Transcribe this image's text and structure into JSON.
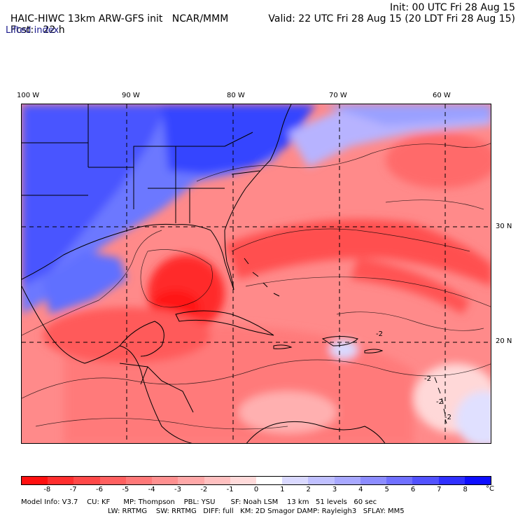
{
  "header": {
    "model": "HAIC-HIWC 13km ARW-GFS init",
    "org": "NCAR/MMM",
    "init": "Init: 00 UTC Fri 28 Aug 15",
    "fcst_label": "Fcst:",
    "fcst_value": "22 h",
    "valid": "Valid: 22 UTC Fri 28 Aug 15 (20 LDT Fri 28 Aug 15)",
    "field": "Lifted index"
  },
  "map": {
    "lon_labels": [
      "100 W",
      "90 W",
      "80 W",
      "70 W",
      "60 W"
    ],
    "lat_labels": [
      "30 N",
      "20 N"
    ],
    "contour_labels": [
      "-2",
      "-2",
      "-2",
      "-2"
    ]
  },
  "colorbar": {
    "ticks": [
      "-8",
      "-7",
      "-6",
      "-5",
      "-4",
      "-3",
      "-2",
      "-1",
      "0",
      "1",
      "2",
      "3",
      "4",
      "5",
      "6",
      "7",
      "8"
    ],
    "unit": "°C",
    "colors": [
      "#ff1010",
      "#ff2e2e",
      "#ff4848",
      "#ff6060",
      "#ff7878",
      "#ff9090",
      "#ffa8a8",
      "#ffc0c0",
      "#ffdada",
      "#ffffff",
      "#dad9ff",
      "#c0c0ff",
      "#a8a8ff",
      "#8c8cff",
      "#7070ff",
      "#5252ff",
      "#3030ff",
      "#0e0eff"
    ]
  },
  "model_info": {
    "line1": "Model Info: V3.7    CU: KF      MP: Thompson    PBL: YSU       SF: Noah LSM    13 km   51 levels   60 sec",
    "line2": "LW: RRTMG    SW: RRTMG   DIFF: full   KM: 2D Smagor DAMP: Rayleigh3   SFLAY: MM5"
  },
  "legend_colors": {
    "ocean_warm": "#ff8080",
    "deep_red": "#ff2020",
    "cold_blue": "#5060ff",
    "pale": "#ffc8c8"
  }
}
